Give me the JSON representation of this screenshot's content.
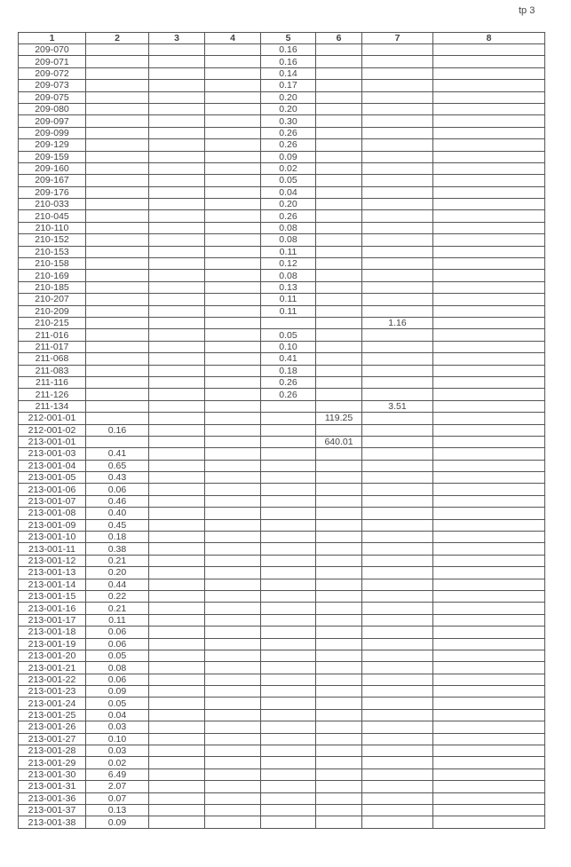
{
  "page_label": "tp 3",
  "columns": [
    "1",
    "2",
    "3",
    "4",
    "5",
    "6",
    "7",
    "8"
  ],
  "rows": [
    [
      "209-070",
      "",
      "",
      "",
      "0.16",
      "",
      "",
      ""
    ],
    [
      "209-071",
      "",
      "",
      "",
      "0.16",
      "",
      "",
      ""
    ],
    [
      "209-072",
      "",
      "",
      "",
      "0.14",
      "",
      "",
      ""
    ],
    [
      "209-073",
      "",
      "",
      "",
      "0.17",
      "",
      "",
      ""
    ],
    [
      "209-075",
      "",
      "",
      "",
      "0.20",
      "",
      "",
      ""
    ],
    [
      "209-080",
      "",
      "",
      "",
      "0.20",
      "",
      "",
      ""
    ],
    [
      "209-097",
      "",
      "",
      "",
      "0.30",
      "",
      "",
      ""
    ],
    [
      "209-099",
      "",
      "",
      "",
      "0.26",
      "",
      "",
      ""
    ],
    [
      "209-129",
      "",
      "",
      "",
      "0.26",
      "",
      "",
      ""
    ],
    [
      "209-159",
      "",
      "",
      "",
      "0.09",
      "",
      "",
      ""
    ],
    [
      "209-160",
      "",
      "",
      "",
      "0.02",
      "",
      "",
      ""
    ],
    [
      "209-167",
      "",
      "",
      "",
      "0.05",
      "",
      "",
      ""
    ],
    [
      "209-176",
      "",
      "",
      "",
      "0.04",
      "",
      "",
      ""
    ],
    [
      "210-033",
      "",
      "",
      "",
      "0.20",
      "",
      "",
      ""
    ],
    [
      "210-045",
      "",
      "",
      "",
      "0.26",
      "",
      "",
      ""
    ],
    [
      "210-110",
      "",
      "",
      "",
      "0.08",
      "",
      "",
      ""
    ],
    [
      "210-152",
      "",
      "",
      "",
      "0.08",
      "",
      "",
      ""
    ],
    [
      "210-153",
      "",
      "",
      "",
      "0.11",
      "",
      "",
      ""
    ],
    [
      "210-158",
      "",
      "",
      "",
      "0.12",
      "",
      "",
      ""
    ],
    [
      "210-169",
      "",
      "",
      "",
      "0.08",
      "",
      "",
      ""
    ],
    [
      "210-185",
      "",
      "",
      "",
      "0.13",
      "",
      "",
      ""
    ],
    [
      "210-207",
      "",
      "",
      "",
      "0.11",
      "",
      "",
      ""
    ],
    [
      "210-209",
      "",
      "",
      "",
      "0.11",
      "",
      "",
      ""
    ],
    [
      "210-215",
      "",
      "",
      "",
      "",
      "",
      "1.16",
      ""
    ],
    [
      "211-016",
      "",
      "",
      "",
      "0.05",
      "",
      "",
      ""
    ],
    [
      "211-017",
      "",
      "",
      "",
      "0.10",
      "",
      "",
      ""
    ],
    [
      "211-068",
      "",
      "",
      "",
      "0.41",
      "",
      "",
      ""
    ],
    [
      "211-083",
      "",
      "",
      "",
      "0.18",
      "",
      "",
      ""
    ],
    [
      "211-116",
      "",
      "",
      "",
      "0.26",
      "",
      "",
      ""
    ],
    [
      "211-126",
      "",
      "",
      "",
      "0.26",
      "",
      "",
      ""
    ],
    [
      "211-134",
      "",
      "",
      "",
      "",
      "",
      "3.51",
      ""
    ],
    [
      "212-001-01",
      "",
      "",
      "",
      "",
      "119.25",
      "",
      ""
    ],
    [
      "212-001-02",
      "0.16",
      "",
      "",
      "",
      "",
      "",
      ""
    ],
    [
      "213-001-01",
      "",
      "",
      "",
      "",
      "640.01",
      "",
      ""
    ],
    [
      "213-001-03",
      "0.41",
      "",
      "",
      "",
      "",
      "",
      ""
    ],
    [
      "213-001-04",
      "0.65",
      "",
      "",
      "",
      "",
      "",
      ""
    ],
    [
      "213-001-05",
      "0.43",
      "",
      "",
      "",
      "",
      "",
      ""
    ],
    [
      "213-001-06",
      "0.06",
      "",
      "",
      "",
      "",
      "",
      ""
    ],
    [
      "213-001-07",
      "0.46",
      "",
      "",
      "",
      "",
      "",
      ""
    ],
    [
      "213-001-08",
      "0.40",
      "",
      "",
      "",
      "",
      "",
      ""
    ],
    [
      "213-001-09",
      "0.45",
      "",
      "",
      "",
      "",
      "",
      ""
    ],
    [
      "213-001-10",
      "0.18",
      "",
      "",
      "",
      "",
      "",
      ""
    ],
    [
      "213-001-11",
      "0.38",
      "",
      "",
      "",
      "",
      "",
      ""
    ],
    [
      "213-001-12",
      "0.21",
      "",
      "",
      "",
      "",
      "",
      ""
    ],
    [
      "213-001-13",
      "0.20",
      "",
      "",
      "",
      "",
      "",
      ""
    ],
    [
      "213-001-14",
      "0.44",
      "",
      "",
      "",
      "",
      "",
      ""
    ],
    [
      "213-001-15",
      "0.22",
      "",
      "",
      "",
      "",
      "",
      ""
    ],
    [
      "213-001-16",
      "0.21",
      "",
      "",
      "",
      "",
      "",
      ""
    ],
    [
      "213-001-17",
      "0.11",
      "",
      "",
      "",
      "",
      "",
      ""
    ],
    [
      "213-001-18",
      "0.06",
      "",
      "",
      "",
      "",
      "",
      ""
    ],
    [
      "213-001-19",
      "0.06",
      "",
      "",
      "",
      "",
      "",
      ""
    ],
    [
      "213-001-20",
      "0.05",
      "",
      "",
      "",
      "",
      "",
      ""
    ],
    [
      "213-001-21",
      "0.08",
      "",
      "",
      "",
      "",
      "",
      ""
    ],
    [
      "213-001-22",
      "0.06",
      "",
      "",
      "",
      "",
      "",
      ""
    ],
    [
      "213-001-23",
      "0.09",
      "",
      "",
      "",
      "",
      "",
      ""
    ],
    [
      "213-001-24",
      "0.05",
      "",
      "",
      "",
      "",
      "",
      ""
    ],
    [
      "213-001-25",
      "0.04",
      "",
      "",
      "",
      "",
      "",
      ""
    ],
    [
      "213-001-26",
      "0.03",
      "",
      "",
      "",
      "",
      "",
      ""
    ],
    [
      "213-001-27",
      "0.10",
      "",
      "",
      "",
      "",
      "",
      ""
    ],
    [
      "213-001-28",
      "0.03",
      "",
      "",
      "",
      "",
      "",
      ""
    ],
    [
      "213-001-29",
      "0.02",
      "",
      "",
      "",
      "",
      "",
      ""
    ],
    [
      "213-001-30",
      "6.49",
      "",
      "",
      "",
      "",
      "",
      ""
    ],
    [
      "213-001-31",
      "2.07",
      "",
      "",
      "",
      "",
      "",
      ""
    ],
    [
      "213-001-36",
      "0.07",
      "",
      "",
      "",
      "",
      "",
      ""
    ],
    [
      "213-001-37",
      "0.13",
      "",
      "",
      "",
      "",
      "",
      ""
    ],
    [
      "213-001-38",
      "0.09",
      "",
      "",
      "",
      "",
      "",
      ""
    ]
  ]
}
